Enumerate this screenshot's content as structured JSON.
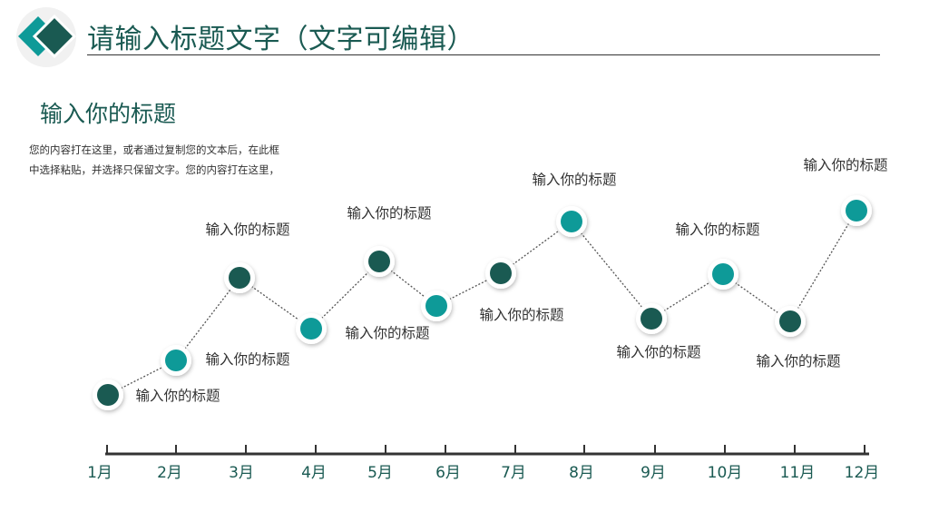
{
  "header": {
    "title": "请输入标题文字（文字可编辑）"
  },
  "section": {
    "subtitle": "输入你的标题",
    "description": "您的内容打在这里，或者通过复制您的文本后，在此框中选择粘贴，并选择只保留文字。您的内容打在这里，"
  },
  "colors": {
    "dark": "#1a5a52",
    "teal": "#0e9a98",
    "line": "#555555",
    "axis": "#333333"
  },
  "timeline": {
    "months": [
      "1月",
      "2月",
      "3月",
      "4月",
      "5月",
      "6月",
      "7月",
      "8月",
      "9月",
      "10月",
      "11月",
      "12月"
    ],
    "points": [
      {
        "color": "dark",
        "label": "输入你的标题"
      },
      {
        "color": "teal",
        "label": "输入你的标题"
      },
      {
        "color": "dark",
        "label": "输入你的标题"
      },
      {
        "color": "teal",
        "label": "输入你的标题"
      },
      {
        "color": "dark",
        "label": "输入你的标题"
      },
      {
        "color": "teal",
        "label": ""
      },
      {
        "color": "dark",
        "label": "输入你的标题"
      },
      {
        "color": "teal",
        "label": "输入你的标题"
      },
      {
        "color": "dark",
        "label": "输入你的标题"
      },
      {
        "color": "teal",
        "label": "输入你的标题"
      },
      {
        "color": "dark",
        "label": "输入你的标题"
      },
      {
        "color": "teal",
        "label": "输入你的标题"
      }
    ]
  }
}
